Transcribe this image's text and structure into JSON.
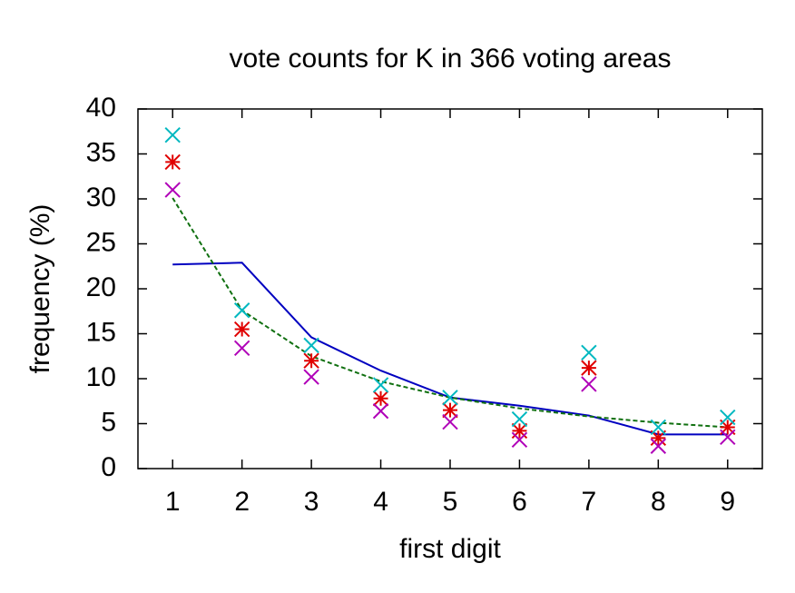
{
  "chart_data": {
    "type": "line",
    "title": "vote counts for K in 366 voting areas",
    "x_label": "first digit",
    "y_label": "frequency (%)",
    "x": [
      1,
      2,
      3,
      4,
      5,
      6,
      7,
      8,
      9
    ],
    "xlim": [
      0.5,
      9.5
    ],
    "xticks": [
      1,
      2,
      3,
      4,
      5,
      6,
      7,
      8,
      9
    ],
    "ylim": [
      0,
      40
    ],
    "yticks": [
      0,
      5,
      10,
      15,
      20,
      25,
      30,
      35,
      40
    ],
    "series": [
      {
        "color": "#0000c0",
        "style": "line",
        "values": [
          22.7,
          22.9,
          14.6,
          10.9,
          7.9,
          7.0,
          5.9,
          3.8,
          3.8
        ]
      },
      {
        "color": "#107010",
        "style": "dashed",
        "values": [
          30.1,
          17.6,
          12.5,
          9.7,
          7.9,
          6.7,
          5.8,
          5.1,
          4.6
        ]
      },
      {
        "color": "#e00000",
        "style": "star",
        "values": [
          34.1,
          15.5,
          12.0,
          7.8,
          6.5,
          4.2,
          11.2,
          3.4,
          4.6
        ]
      },
      {
        "color": "#00b8c0",
        "style": "cross",
        "values": [
          37.1,
          17.6,
          13.7,
          9.3,
          7.9,
          5.5,
          12.9,
          4.6,
          5.7
        ]
      },
      {
        "color": "#b000b8",
        "style": "cross",
        "values": [
          31.0,
          13.4,
          10.2,
          6.4,
          5.2,
          3.2,
          9.4,
          2.5,
          3.5
        ]
      }
    ]
  }
}
